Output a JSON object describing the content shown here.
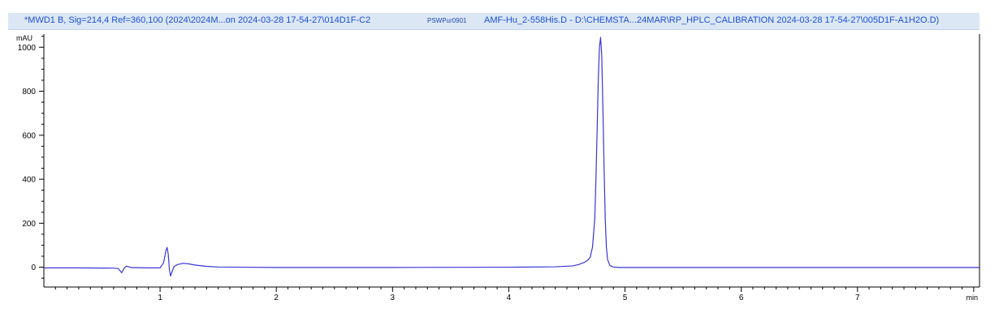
{
  "header": {
    "signal_info": "*MWD1 B, Sig=214,4 Ref=360,100 (2024\\2024M...on 2024-03-28 17-54-27\\014D1F-C2",
    "sample_tag": "PSWPur0901",
    "file_info": "AMF-Hu_2-558His.D - D:\\CHEMSTA...24MAR\\RP_HPLC_CALIBRATION 2024-03-28 17-54-27\\005D1F-A1H2O.D)"
  },
  "colors": {
    "trace": "#3a35d4",
    "title_text": "#1c4fd6",
    "title_bg": "#dbe7f5",
    "axis": "#000000"
  },
  "chart_data": {
    "type": "line",
    "title": "",
    "xlabel": "",
    "ylabel": "",
    "x_unit": "min",
    "y_unit": "mAU",
    "xlim": [
      0,
      8.05
    ],
    "ylim": [
      -90,
      1060
    ],
    "x_ticks": [
      1,
      2,
      3,
      4,
      5,
      6,
      7
    ],
    "y_ticks": [
      0,
      200,
      400,
      600,
      800,
      1000
    ],
    "grid": false,
    "series": [
      {
        "name": "",
        "x": [
          0,
          0.3,
          0.6,
          0.64,
          0.67,
          0.69,
          0.71,
          0.73,
          0.76,
          0.8,
          0.9,
          1.0,
          1.03,
          1.05,
          1.06,
          1.07,
          1.08,
          1.09,
          1.1,
          1.12,
          1.15,
          1.2,
          1.25,
          1.3,
          1.4,
          1.5,
          1.7,
          2.0,
          3.0,
          4.0,
          4.4,
          4.55,
          4.6,
          4.65,
          4.68,
          4.7,
          4.72,
          4.74,
          4.75,
          4.76,
          4.77,
          4.78,
          4.79,
          4.8,
          4.81,
          4.82,
          4.83,
          4.84,
          4.85,
          4.87,
          4.9,
          4.95,
          5.0,
          5.5,
          6.0,
          7.0,
          8.05
        ],
        "y": [
          -3,
          -3,
          -4,
          -6,
          -25,
          -5,
          5,
          2,
          -2,
          -2,
          -3,
          -3,
          20,
          75,
          90,
          60,
          -10,
          -40,
          -25,
          3,
          12,
          18,
          15,
          10,
          4,
          1,
          0,
          -1,
          -1,
          0,
          2,
          6,
          12,
          22,
          32,
          45,
          90,
          220,
          400,
          620,
          850,
          1000,
          1045,
          960,
          720,
          450,
          220,
          90,
          35,
          8,
          1,
          -1,
          -1,
          -1,
          -1,
          -1,
          -1
        ]
      }
    ]
  }
}
